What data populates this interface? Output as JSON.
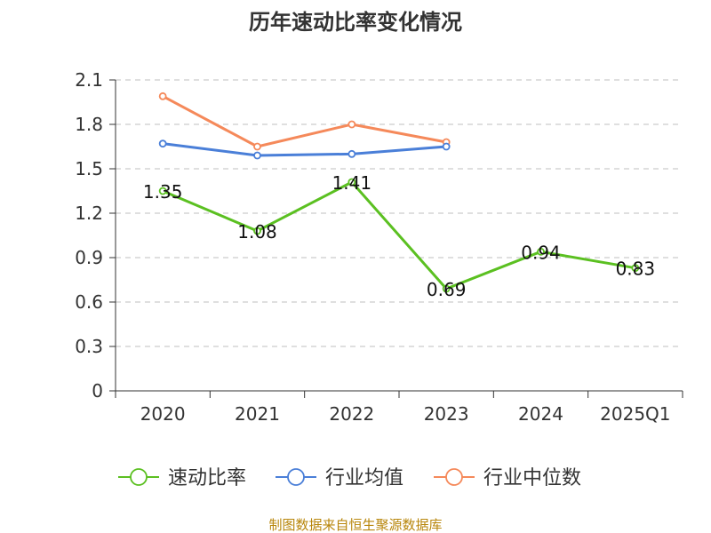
{
  "chart_data": {
    "type": "line",
    "title": "历年速动比率变化情况",
    "categories": [
      "2020",
      "2021",
      "2022",
      "2023",
      "2024",
      "2025Q1"
    ],
    "y_ticks": [
      "0",
      "0.3",
      "0.6",
      "0.9",
      "1.2",
      "1.5",
      "1.8",
      "2.1"
    ],
    "ylim": [
      0,
      2.1
    ],
    "grid": true,
    "legend_position": "bottom",
    "series": [
      {
        "name": "速动比率",
        "color": "#5bc021",
        "values": [
          1.35,
          1.08,
          1.41,
          0.69,
          0.94,
          0.83
        ],
        "labels": [
          "1.35",
          "1.08",
          "1.41",
          "0.69",
          "0.94",
          "0.83"
        ]
      },
      {
        "name": "行业均值",
        "color": "#4a7fd8",
        "values": [
          1.67,
          1.59,
          1.6,
          1.65,
          null,
          null
        ]
      },
      {
        "name": "行业中位数",
        "color": "#f5895a",
        "values": [
          1.99,
          1.65,
          1.8,
          1.68,
          null,
          null
        ]
      }
    ]
  },
  "source": "制图数据来自恒生聚源数据库"
}
